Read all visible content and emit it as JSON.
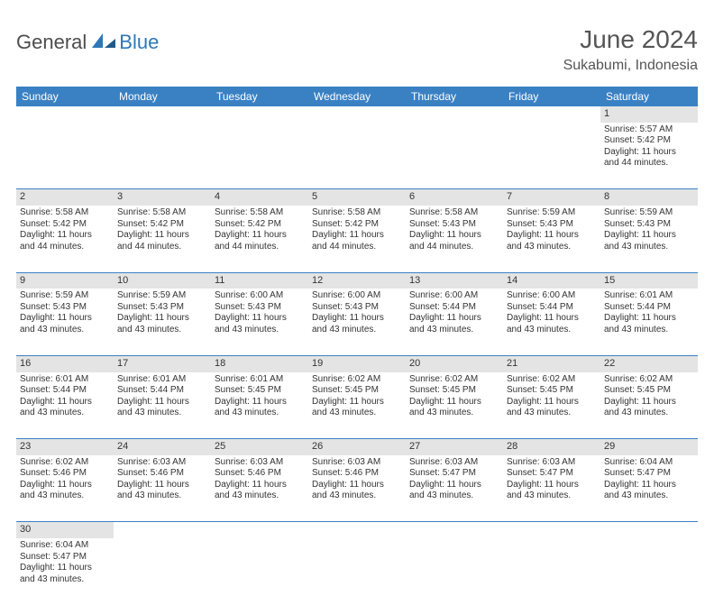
{
  "brand": {
    "text_general": "General",
    "text_blue": "Blue"
  },
  "title": {
    "month": "June 2024",
    "location": "Sukabumi, Indonesia"
  },
  "colors": {
    "header_bg": "#3a81c4",
    "header_text": "#ffffff",
    "daynum_bg": "#e4e4e4",
    "row_divider": "#3a81c4",
    "logo_blue": "#2f78b7",
    "text": "#333333",
    "title_text": "#555555"
  },
  "weekdays": [
    "Sunday",
    "Monday",
    "Tuesday",
    "Wednesday",
    "Thursday",
    "Friday",
    "Saturday"
  ],
  "weeks": [
    [
      null,
      null,
      null,
      null,
      null,
      null,
      {
        "d": "1",
        "sr": "Sunrise: 5:57 AM",
        "ss": "Sunset: 5:42 PM",
        "dl1": "Daylight: 11 hours",
        "dl2": "and 44 minutes."
      }
    ],
    [
      {
        "d": "2",
        "sr": "Sunrise: 5:58 AM",
        "ss": "Sunset: 5:42 PM",
        "dl1": "Daylight: 11 hours",
        "dl2": "and 44 minutes."
      },
      {
        "d": "3",
        "sr": "Sunrise: 5:58 AM",
        "ss": "Sunset: 5:42 PM",
        "dl1": "Daylight: 11 hours",
        "dl2": "and 44 minutes."
      },
      {
        "d": "4",
        "sr": "Sunrise: 5:58 AM",
        "ss": "Sunset: 5:42 PM",
        "dl1": "Daylight: 11 hours",
        "dl2": "and 44 minutes."
      },
      {
        "d": "5",
        "sr": "Sunrise: 5:58 AM",
        "ss": "Sunset: 5:42 PM",
        "dl1": "Daylight: 11 hours",
        "dl2": "and 44 minutes."
      },
      {
        "d": "6",
        "sr": "Sunrise: 5:58 AM",
        "ss": "Sunset: 5:43 PM",
        "dl1": "Daylight: 11 hours",
        "dl2": "and 44 minutes."
      },
      {
        "d": "7",
        "sr": "Sunrise: 5:59 AM",
        "ss": "Sunset: 5:43 PM",
        "dl1": "Daylight: 11 hours",
        "dl2": "and 43 minutes."
      },
      {
        "d": "8",
        "sr": "Sunrise: 5:59 AM",
        "ss": "Sunset: 5:43 PM",
        "dl1": "Daylight: 11 hours",
        "dl2": "and 43 minutes."
      }
    ],
    [
      {
        "d": "9",
        "sr": "Sunrise: 5:59 AM",
        "ss": "Sunset: 5:43 PM",
        "dl1": "Daylight: 11 hours",
        "dl2": "and 43 minutes."
      },
      {
        "d": "10",
        "sr": "Sunrise: 5:59 AM",
        "ss": "Sunset: 5:43 PM",
        "dl1": "Daylight: 11 hours",
        "dl2": "and 43 minutes."
      },
      {
        "d": "11",
        "sr": "Sunrise: 6:00 AM",
        "ss": "Sunset: 5:43 PM",
        "dl1": "Daylight: 11 hours",
        "dl2": "and 43 minutes."
      },
      {
        "d": "12",
        "sr": "Sunrise: 6:00 AM",
        "ss": "Sunset: 5:43 PM",
        "dl1": "Daylight: 11 hours",
        "dl2": "and 43 minutes."
      },
      {
        "d": "13",
        "sr": "Sunrise: 6:00 AM",
        "ss": "Sunset: 5:44 PM",
        "dl1": "Daylight: 11 hours",
        "dl2": "and 43 minutes."
      },
      {
        "d": "14",
        "sr": "Sunrise: 6:00 AM",
        "ss": "Sunset: 5:44 PM",
        "dl1": "Daylight: 11 hours",
        "dl2": "and 43 minutes."
      },
      {
        "d": "15",
        "sr": "Sunrise: 6:01 AM",
        "ss": "Sunset: 5:44 PM",
        "dl1": "Daylight: 11 hours",
        "dl2": "and 43 minutes."
      }
    ],
    [
      {
        "d": "16",
        "sr": "Sunrise: 6:01 AM",
        "ss": "Sunset: 5:44 PM",
        "dl1": "Daylight: 11 hours",
        "dl2": "and 43 minutes."
      },
      {
        "d": "17",
        "sr": "Sunrise: 6:01 AM",
        "ss": "Sunset: 5:44 PM",
        "dl1": "Daylight: 11 hours",
        "dl2": "and 43 minutes."
      },
      {
        "d": "18",
        "sr": "Sunrise: 6:01 AM",
        "ss": "Sunset: 5:45 PM",
        "dl1": "Daylight: 11 hours",
        "dl2": "and 43 minutes."
      },
      {
        "d": "19",
        "sr": "Sunrise: 6:02 AM",
        "ss": "Sunset: 5:45 PM",
        "dl1": "Daylight: 11 hours",
        "dl2": "and 43 minutes."
      },
      {
        "d": "20",
        "sr": "Sunrise: 6:02 AM",
        "ss": "Sunset: 5:45 PM",
        "dl1": "Daylight: 11 hours",
        "dl2": "and 43 minutes."
      },
      {
        "d": "21",
        "sr": "Sunrise: 6:02 AM",
        "ss": "Sunset: 5:45 PM",
        "dl1": "Daylight: 11 hours",
        "dl2": "and 43 minutes."
      },
      {
        "d": "22",
        "sr": "Sunrise: 6:02 AM",
        "ss": "Sunset: 5:45 PM",
        "dl1": "Daylight: 11 hours",
        "dl2": "and 43 minutes."
      }
    ],
    [
      {
        "d": "23",
        "sr": "Sunrise: 6:02 AM",
        "ss": "Sunset: 5:46 PM",
        "dl1": "Daylight: 11 hours",
        "dl2": "and 43 minutes."
      },
      {
        "d": "24",
        "sr": "Sunrise: 6:03 AM",
        "ss": "Sunset: 5:46 PM",
        "dl1": "Daylight: 11 hours",
        "dl2": "and 43 minutes."
      },
      {
        "d": "25",
        "sr": "Sunrise: 6:03 AM",
        "ss": "Sunset: 5:46 PM",
        "dl1": "Daylight: 11 hours",
        "dl2": "and 43 minutes."
      },
      {
        "d": "26",
        "sr": "Sunrise: 6:03 AM",
        "ss": "Sunset: 5:46 PM",
        "dl1": "Daylight: 11 hours",
        "dl2": "and 43 minutes."
      },
      {
        "d": "27",
        "sr": "Sunrise: 6:03 AM",
        "ss": "Sunset: 5:47 PM",
        "dl1": "Daylight: 11 hours",
        "dl2": "and 43 minutes."
      },
      {
        "d": "28",
        "sr": "Sunrise: 6:03 AM",
        "ss": "Sunset: 5:47 PM",
        "dl1": "Daylight: 11 hours",
        "dl2": "and 43 minutes."
      },
      {
        "d": "29",
        "sr": "Sunrise: 6:04 AM",
        "ss": "Sunset: 5:47 PM",
        "dl1": "Daylight: 11 hours",
        "dl2": "and 43 minutes."
      }
    ],
    [
      {
        "d": "30",
        "sr": "Sunrise: 6:04 AM",
        "ss": "Sunset: 5:47 PM",
        "dl1": "Daylight: 11 hours",
        "dl2": "and 43 minutes."
      },
      null,
      null,
      null,
      null,
      null,
      null
    ]
  ]
}
